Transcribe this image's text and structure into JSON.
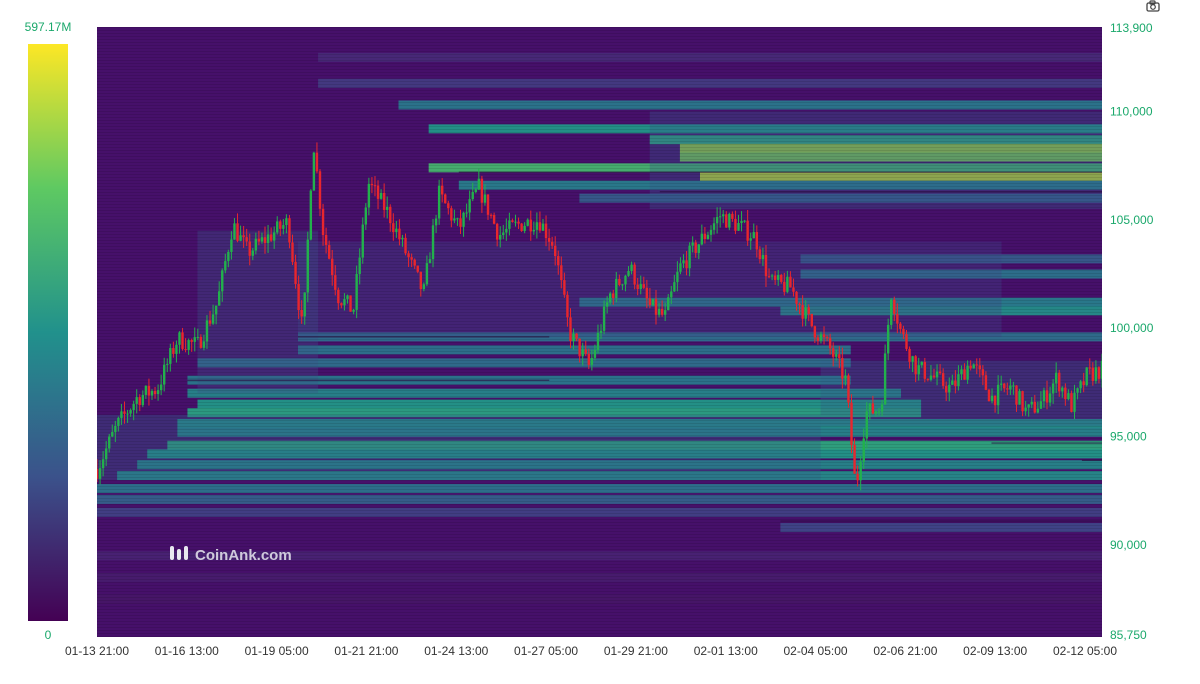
{
  "toolbar": {
    "camera_icon": "camera-icon"
  },
  "watermark": {
    "text": "CoinAnk.com"
  },
  "colors": {
    "heatmap_low": "#440154",
    "heatmap_mid": "#21918c",
    "heatmap_high": "#fde725",
    "candle_up": "#22b14c",
    "candle_down": "#e8262d",
    "axis_text": "#1aa86b"
  },
  "chart_data": {
    "type": "heatmap",
    "colorscale": {
      "min_label": "0",
      "max_label": "597.17M",
      "min": 0,
      "max": 597170000
    },
    "y_axis": {
      "range": [
        85750,
        113900
      ],
      "ticks": [
        "113,900",
        "110,000",
        "105,000",
        "100,000",
        "95,000",
        "90,000",
        "85,750"
      ],
      "tick_values": [
        113900,
        110000,
        105000,
        100000,
        95000,
        90000,
        85750
      ]
    },
    "x_axis": {
      "ticks": [
        "01-13 21:00",
        "01-16 13:00",
        "01-19 05:00",
        "01-21 21:00",
        "01-24 13:00",
        "01-27 05:00",
        "01-29 21:00",
        "02-01 13:00",
        "02-04 05:00",
        "02-06 21:00",
        "02-09 13:00",
        "02-12 05:00"
      ]
    },
    "price_path": [
      [
        0,
        93500
      ],
      [
        0.02,
        95500
      ],
      [
        0.04,
        96800
      ],
      [
        0.06,
        97200
      ],
      [
        0.08,
        99500
      ],
      [
        0.1,
        99200
      ],
      [
        0.12,
        101200
      ],
      [
        0.135,
        104800
      ],
      [
        0.15,
        103500
      ],
      [
        0.17,
        104200
      ],
      [
        0.19,
        104900
      ],
      [
        0.205,
        99700
      ],
      [
        0.215,
        108800
      ],
      [
        0.225,
        104500
      ],
      [
        0.24,
        101500
      ],
      [
        0.255,
        100800
      ],
      [
        0.27,
        106700
      ],
      [
        0.29,
        105300
      ],
      [
        0.31,
        103200
      ],
      [
        0.325,
        101600
      ],
      [
        0.34,
        106200
      ],
      [
        0.36,
        104600
      ],
      [
        0.38,
        106500
      ],
      [
        0.4,
        104300
      ],
      [
        0.42,
        104800
      ],
      [
        0.44,
        105000
      ],
      [
        0.455,
        103800
      ],
      [
        0.47,
        99800
      ],
      [
        0.49,
        98200
      ],
      [
        0.51,
        101500
      ],
      [
        0.53,
        102800
      ],
      [
        0.55,
        101000
      ],
      [
        0.565,
        100500
      ],
      [
        0.58,
        102800
      ],
      [
        0.6,
        104000
      ],
      [
        0.62,
        105200
      ],
      [
        0.64,
        104700
      ],
      [
        0.655,
        104200
      ],
      [
        0.67,
        102100
      ],
      [
        0.69,
        101900
      ],
      [
        0.71,
        100200
      ],
      [
        0.73,
        99000
      ],
      [
        0.745,
        97600
      ],
      [
        0.755,
        92500
      ],
      [
        0.765,
        96100
      ],
      [
        0.78,
        96300
      ],
      [
        0.79,
        101700
      ],
      [
        0.8,
        99800
      ],
      [
        0.815,
        98200
      ],
      [
        0.83,
        97800
      ],
      [
        0.85,
        97200
      ],
      [
        0.87,
        98500
      ],
      [
        0.89,
        96800
      ],
      [
        0.91,
        97300
      ],
      [
        0.925,
        96100
      ],
      [
        0.94,
        96600
      ],
      [
        0.955,
        97700
      ],
      [
        0.97,
        96400
      ],
      [
        0.985,
        97800
      ],
      [
        1.0,
        98100
      ]
    ]
  }
}
